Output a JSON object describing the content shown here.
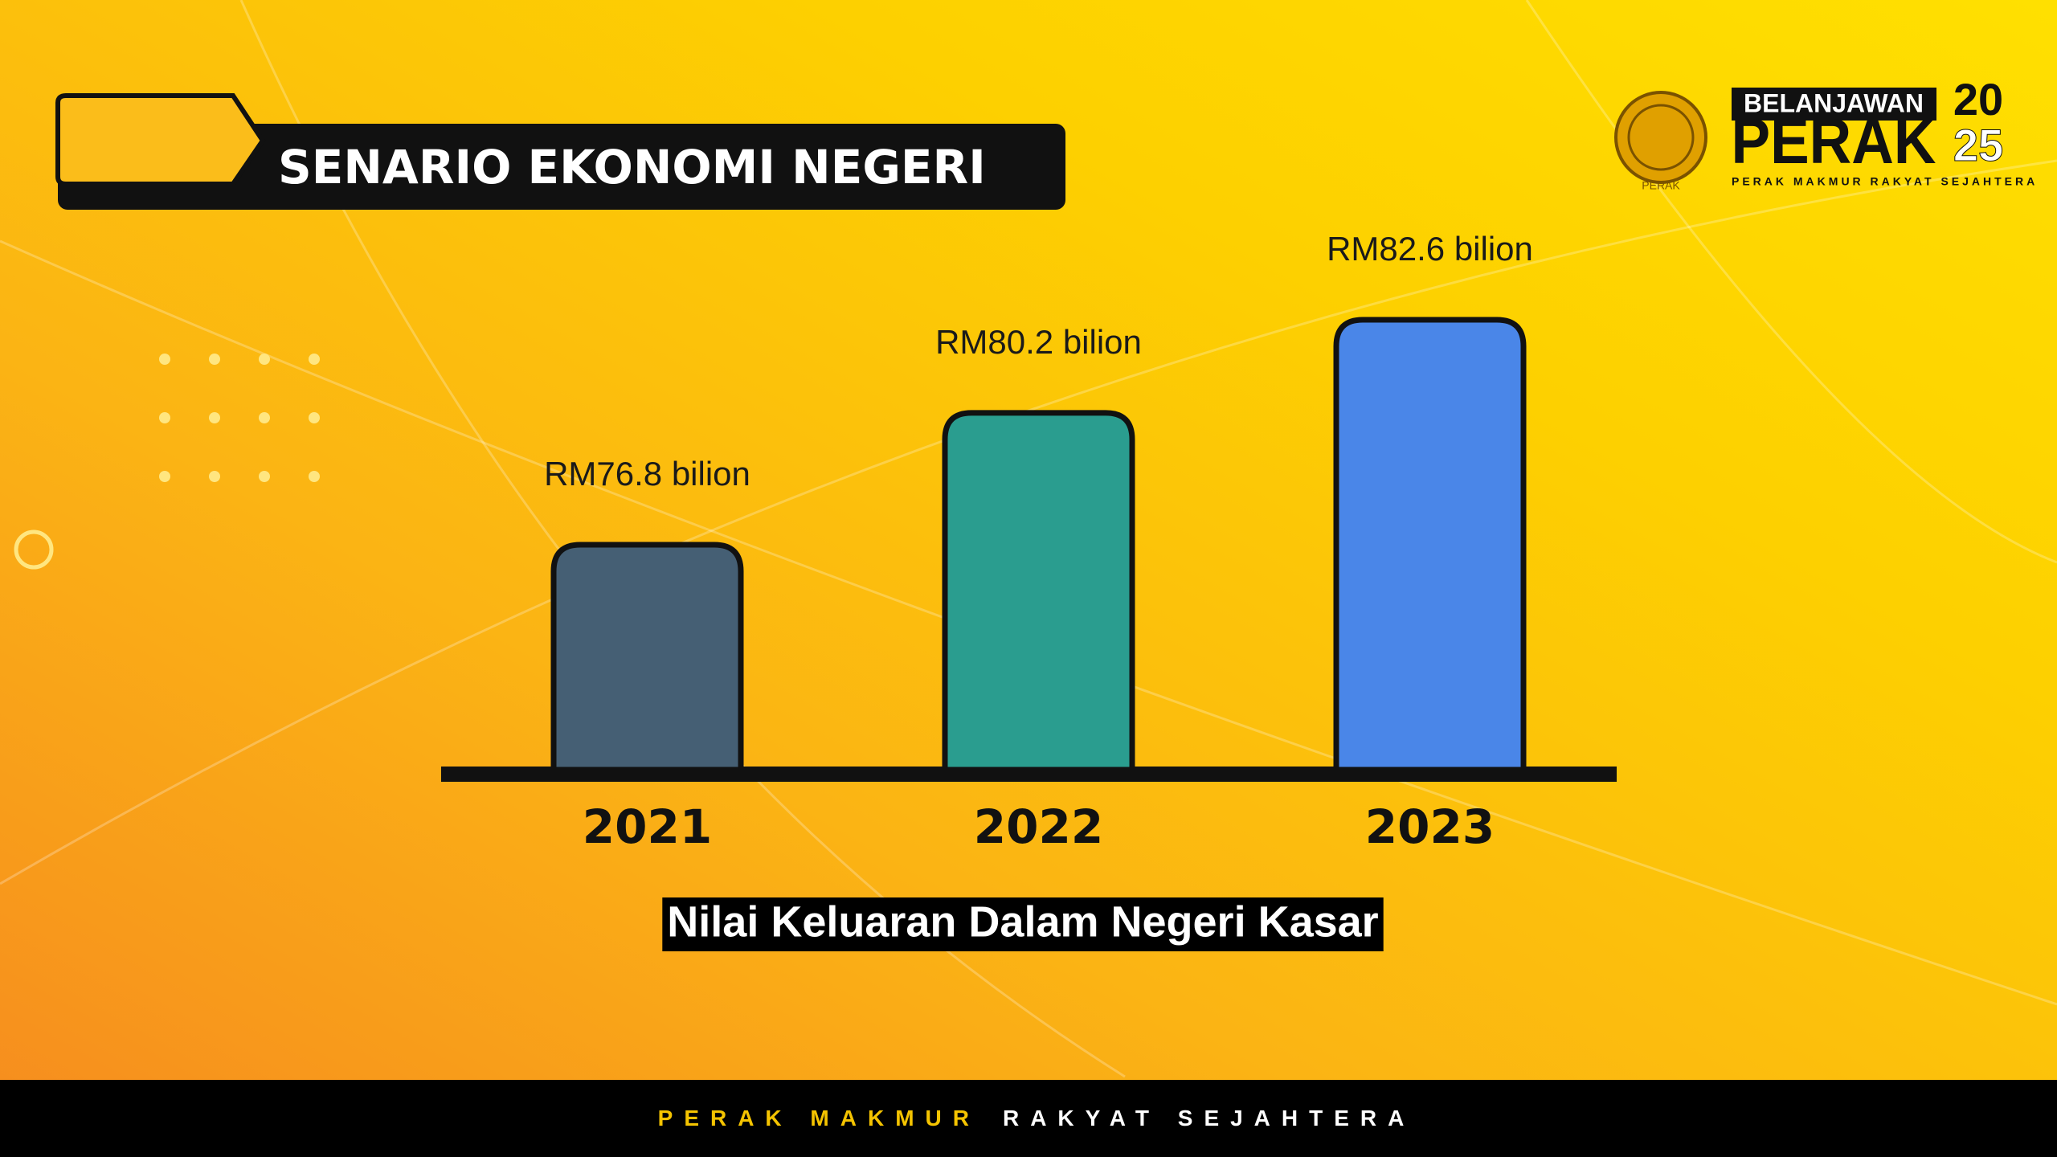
{
  "header": {
    "title": "SENARIO EKONOMI NEGERI"
  },
  "logo": {
    "line1": "BELANJAWAN",
    "line2": "PERAK",
    "year_top": "20",
    "year_bottom": "25",
    "tagline": "PERAK MAKMUR RAKYAT SEJAHTERA",
    "emblem_label": "PERAK"
  },
  "chart_data": {
    "type": "bar",
    "categories": [
      "2021",
      "2022",
      "2023"
    ],
    "values": [
      76.8,
      80.2,
      82.6
    ],
    "value_labels": [
      "RM76.8 bilion",
      "RM80.2 bilion",
      "RM82.6 bilion"
    ],
    "colors": [
      "#455f74",
      "#2a9d8f",
      "#4a86e8"
    ],
    "x_label": "Nilai Keluaran Dalam Negeri Kasar"
  },
  "footer": {
    "left": "PERAK MAKMUR",
    "right": "RAKYAT SEJAHTERA"
  }
}
